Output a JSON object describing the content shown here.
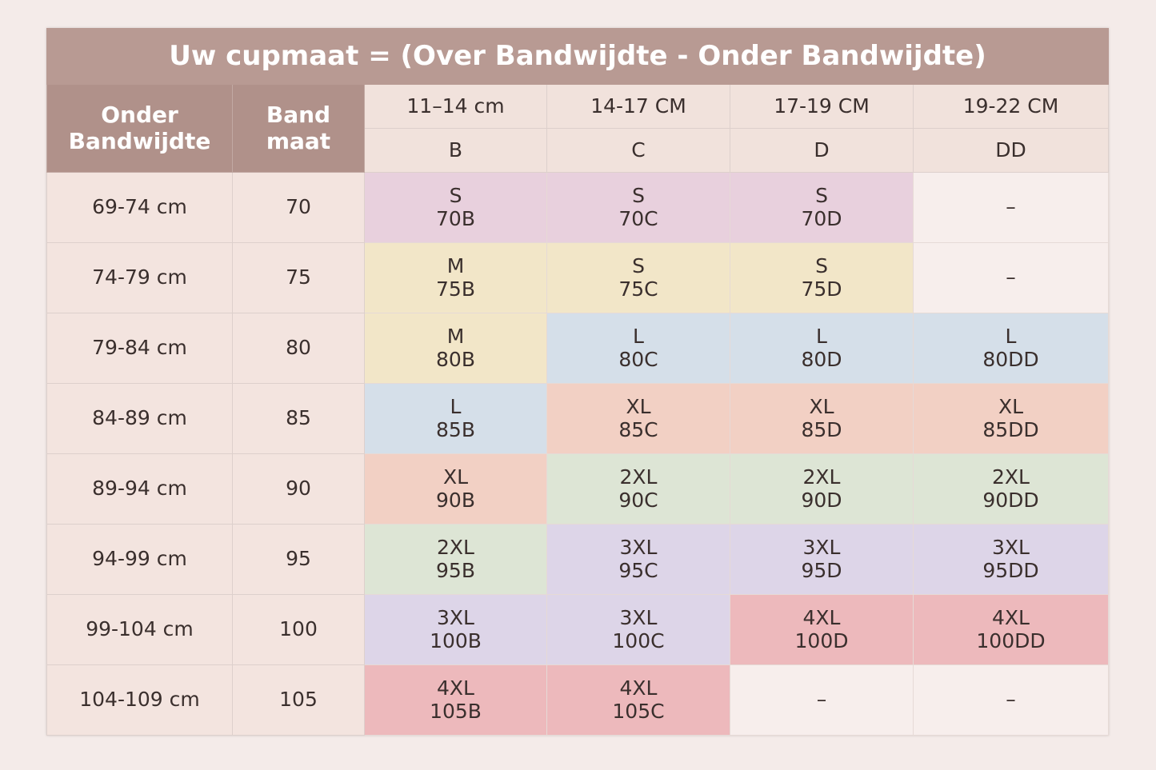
{
  "header": {
    "title": "Uw cupmaat = (Over Bandwijdte - Onder Bandwijdte)",
    "under_band": "Onder Bandwijdte",
    "band_size": "Band maat",
    "ranges": [
      "11–14 cm",
      "14-17 CM",
      "17-19 CM",
      "19-22 CM"
    ],
    "cups": [
      "B",
      "C",
      "D",
      "DD"
    ]
  },
  "table": {
    "rows": [
      {
        "under": "69-74 cm",
        "band": "70",
        "cells": [
          {
            "size": "S",
            "code": "70B",
            "color": "#e8d0dd"
          },
          {
            "size": "S",
            "code": "70C",
            "color": "#e8d0dd"
          },
          {
            "size": "S",
            "code": "70D",
            "color": "#e8d0dd"
          },
          {
            "empty": "–",
            "color": "#f7eeec"
          }
        ]
      },
      {
        "under": "74-79 cm",
        "band": "75",
        "cells": [
          {
            "size": "M",
            "code": "75B",
            "color": "#f2e6c8"
          },
          {
            "size": "S",
            "code": "75C",
            "color": "#f2e6c8"
          },
          {
            "size": "S",
            "code": "75D",
            "color": "#f2e6c8"
          },
          {
            "empty": "–",
            "color": "#f7eeec"
          }
        ]
      },
      {
        "under": "79-84 cm",
        "band": "80",
        "cells": [
          {
            "size": "M",
            "code": "80B",
            "color": "#f2e6c8"
          },
          {
            "size": "L",
            "code": "80C",
            "color": "#d5dfe9"
          },
          {
            "size": "L",
            "code": "80D",
            "color": "#d5dfe9"
          },
          {
            "size": "L",
            "code": "80DD",
            "color": "#d5dfe9"
          }
        ]
      },
      {
        "under": "84-89 cm",
        "band": "85",
        "cells": [
          {
            "size": "L",
            "code": "85B",
            "color": "#d5dfe9"
          },
          {
            "size": "XL",
            "code": "85C",
            "color": "#f2d0c4"
          },
          {
            "size": "XL",
            "code": "85D",
            "color": "#f2d0c4"
          },
          {
            "size": "XL",
            "code": "85DD",
            "color": "#f2d0c4"
          }
        ]
      },
      {
        "under": "89-94 cm",
        "band": "90",
        "cells": [
          {
            "size": "XL",
            "code": "90B",
            "color": "#f2d0c4"
          },
          {
            "size": "2XL",
            "code": "90C",
            "color": "#dde5d5"
          },
          {
            "size": "2XL",
            "code": "90D",
            "color": "#dde5d5"
          },
          {
            "size": "2XL",
            "code": "90DD",
            "color": "#dde5d5"
          }
        ]
      },
      {
        "under": "94-99 cm",
        "band": "95",
        "cells": [
          {
            "size": "2XL",
            "code": "95B",
            "color": "#dde5d5"
          },
          {
            "size": "3XL",
            "code": "95C",
            "color": "#ddd5e8"
          },
          {
            "size": "3XL",
            "code": "95D",
            "color": "#ddd5e8"
          },
          {
            "size": "3XL",
            "code": "95DD",
            "color": "#ddd5e8"
          }
        ]
      },
      {
        "under": "99-104 cm",
        "band": "100",
        "cells": [
          {
            "size": "3XL",
            "code": "100B",
            "color": "#ddd5e8"
          },
          {
            "size": "3XL",
            "code": "100C",
            "color": "#ddd5e8"
          },
          {
            "size": "4XL",
            "code": "100D",
            "color": "#edb9bc"
          },
          {
            "size": "4XL",
            "code": "100DD",
            "color": "#edb9bc"
          }
        ]
      },
      {
        "under": "104-109 cm",
        "band": "105",
        "cells": [
          {
            "size": "4XL",
            "code": "105B",
            "color": "#edb9bc"
          },
          {
            "size": "4XL",
            "code": "105C",
            "color": "#edb9bc"
          },
          {
            "empty": "–",
            "color": "#f7eeec"
          },
          {
            "empty": "–",
            "color": "#f7eeec"
          }
        ]
      }
    ]
  }
}
